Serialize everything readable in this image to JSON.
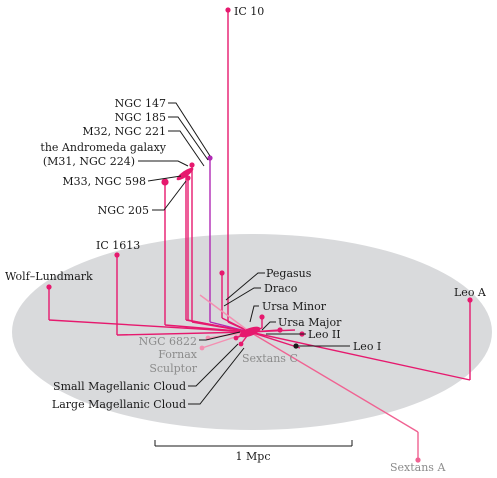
{
  "colors": {
    "background": "#ffffff",
    "plane": "#d9dadc",
    "magenta": "#e6196e",
    "pink": "#f06292",
    "light_pink": "#f48fb1",
    "purple": "#b02ab5",
    "label_dark": "#1a1a1a",
    "label_grey": "#8c8c8c",
    "leader": "#1a1a1a"
  },
  "scale_bar": {
    "label": "1 Mpc"
  },
  "galaxies": [
    {
      "id": "ic10",
      "label": "IC 10"
    },
    {
      "id": "ngc147",
      "label": "NGC 147"
    },
    {
      "id": "ngc185",
      "label": "NGC 185"
    },
    {
      "id": "m32",
      "label": "M32, NGC 221"
    },
    {
      "id": "andromeda",
      "label": "the Andromeda galaxy"
    },
    {
      "id": "m31",
      "label": "(M31, NGC 224)"
    },
    {
      "id": "m33",
      "label": "M33, NGC 598"
    },
    {
      "id": "ngc205",
      "label": "NGC 205"
    },
    {
      "id": "ic1613",
      "label": "IC 1613"
    },
    {
      "id": "wolf",
      "label": "Wolf–Lundmark"
    },
    {
      "id": "pegasus",
      "label": "Pegasus"
    },
    {
      "id": "draco",
      "label": "Draco"
    },
    {
      "id": "ursaminor",
      "label": "Ursa Minor"
    },
    {
      "id": "ursamajor",
      "label": "Ursa Major"
    },
    {
      "id": "leo2",
      "label": "Leo II"
    },
    {
      "id": "leo1",
      "label": "Leo I"
    },
    {
      "id": "leoa",
      "label": "Leo A"
    },
    {
      "id": "ngc6822",
      "label": "NGC 6822"
    },
    {
      "id": "fornax",
      "label": "Fornax"
    },
    {
      "id": "sculptor",
      "label": "Sculptor"
    },
    {
      "id": "sextansc",
      "label": "Sextans C"
    },
    {
      "id": "smc",
      "label": "Small Magellanic Cloud"
    },
    {
      "id": "lmc",
      "label": "Large Magellanic Cloud"
    },
    {
      "id": "sextansa",
      "label": "Sextans A"
    }
  ]
}
